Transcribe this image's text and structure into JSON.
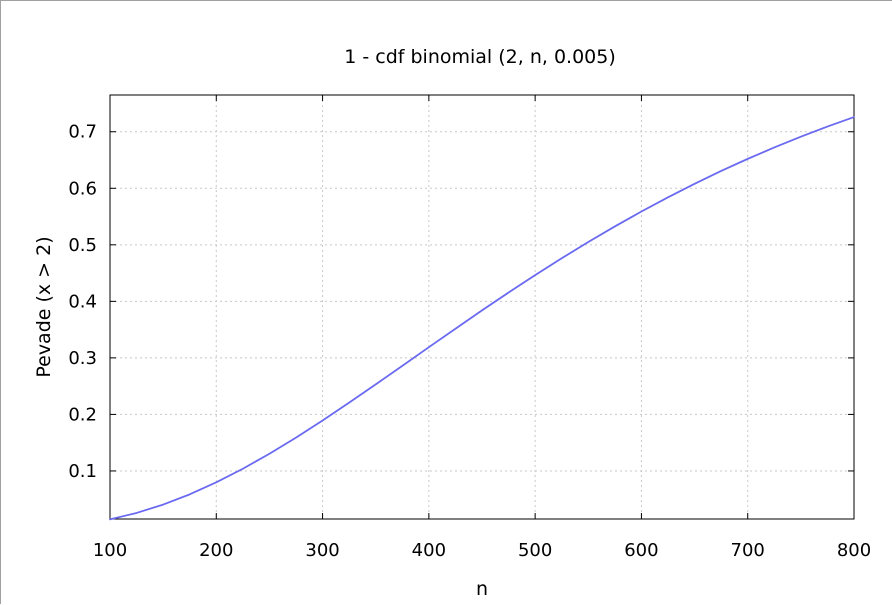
{
  "chart_data": {
    "type": "line",
    "title": "1 - cdf binomial (2, n, 0.005)",
    "xlabel": "n",
    "ylabel": "Pevade (x > 2)",
    "xlim": [
      100,
      800
    ],
    "ylim": [
      0.015,
      0.765
    ],
    "x_ticks": [
      100,
      200,
      300,
      400,
      500,
      600,
      700,
      800
    ],
    "x_tick_labels": [
      "100",
      "200",
      "300",
      "400",
      "500",
      "600",
      "700",
      "800"
    ],
    "y_ticks": [
      0.1,
      0.2,
      0.3,
      0.4,
      0.5,
      0.6,
      0.7
    ],
    "y_tick_labels": [
      "0.1",
      "0.2",
      "0.3",
      "0.4",
      "0.5",
      "0.6",
      "0.7"
    ],
    "grid": true,
    "line_color": "#6a6af0",
    "series": [
      {
        "x": [
          100,
          125,
          150,
          175,
          200,
          225,
          250,
          275,
          300,
          325,
          350,
          375,
          400,
          425,
          450,
          475,
          500,
          525,
          550,
          575,
          600,
          625,
          650,
          675,
          700,
          725,
          750,
          775,
          800
        ],
        "values": [
          0.0144,
          0.0257,
          0.0405,
          0.0586,
          0.0799,
          0.1039,
          0.1304,
          0.1589,
          0.1892,
          0.2208,
          0.2531,
          0.2859,
          0.3189,
          0.3516,
          0.384,
          0.4156,
          0.4464,
          0.4762,
          0.5049,
          0.5325,
          0.5589,
          0.584,
          0.6079,
          0.6306,
          0.652,
          0.6722,
          0.6913,
          0.7092,
          0.726
        ]
      }
    ]
  }
}
